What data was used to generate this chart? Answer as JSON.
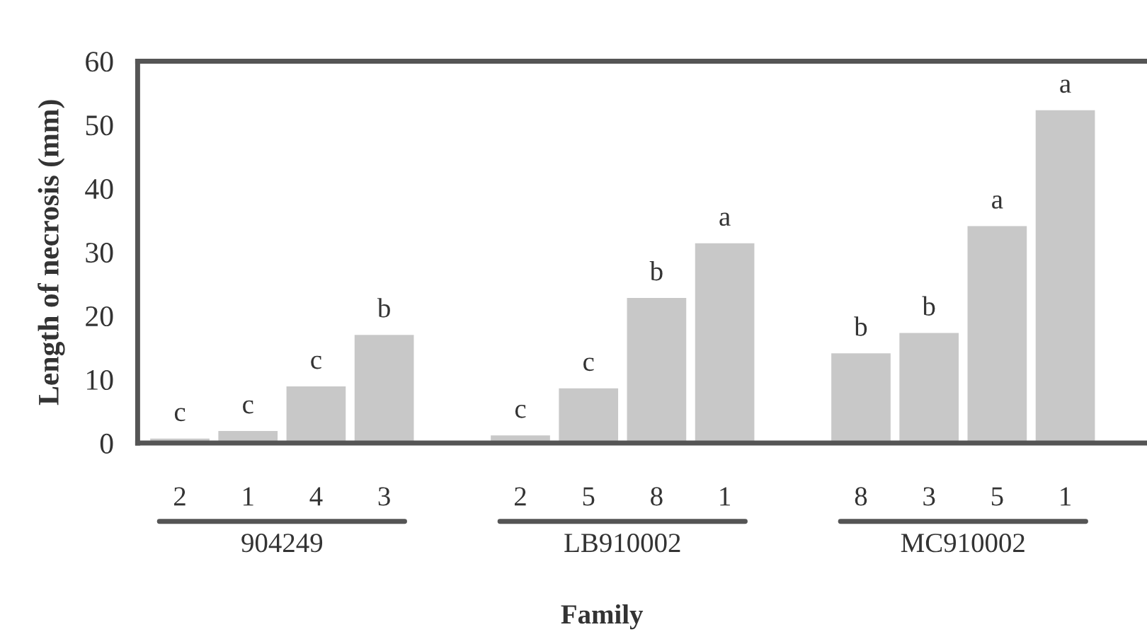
{
  "chart_data": {
    "type": "bar",
    "xlabel": "Family",
    "ylabel": "Length of necrosis (mm)",
    "categories": [
      "2",
      "1",
      "4",
      "3",
      "2",
      "5",
      "8",
      "1",
      "8",
      "3",
      "5",
      "1"
    ],
    "values": [
      0.7,
      1.9,
      8.9,
      17,
      1.2,
      8.6,
      22.8,
      31.4,
      14.1,
      17.3,
      34.1,
      52.3
    ],
    "value_labels": [
      "c",
      "c",
      "c",
      "b",
      "c",
      "c",
      "b",
      "a",
      "b",
      "b",
      "a",
      "a"
    ],
    "color": "#c8c8c8",
    "annotations": [
      "904249",
      "LB910002",
      "MC910002"
    ],
    "ylim": [
      0,
      60
    ],
    "yticks": [
      0,
      10,
      20,
      30,
      40,
      50,
      60
    ],
    "grid": false,
    "legend": false
  }
}
